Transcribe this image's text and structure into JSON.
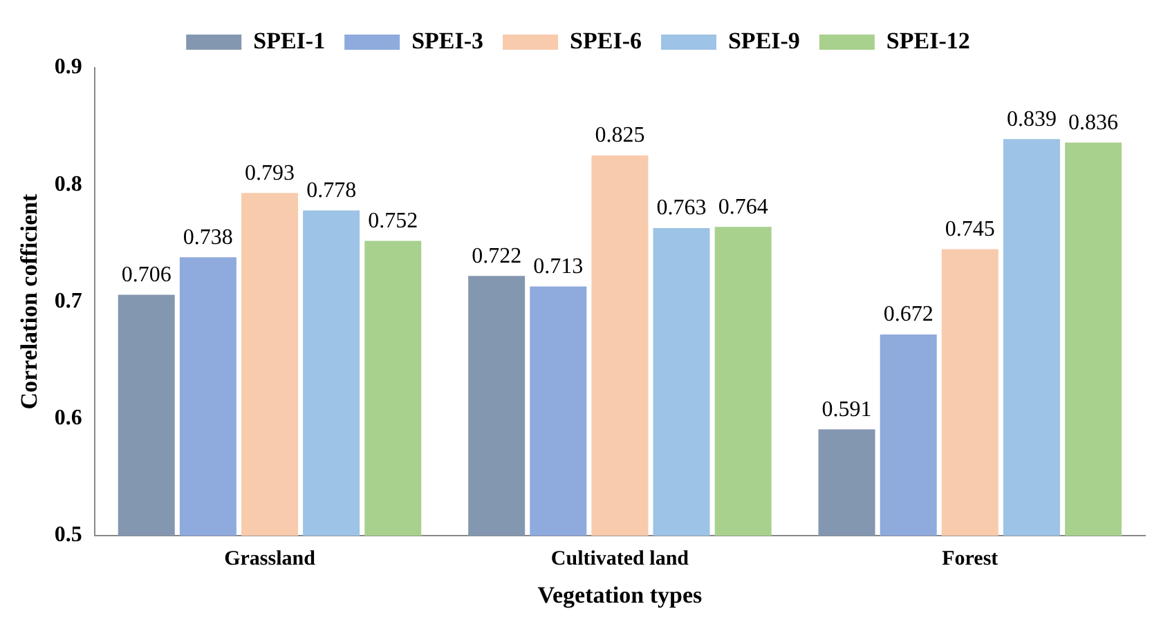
{
  "chart_data": {
    "type": "bar",
    "xlabel": "Vegetation types",
    "ylabel": "Correlation cofficient",
    "categories": [
      "Grassland",
      "Cultivated land",
      "Forest"
    ],
    "series": [
      {
        "name": "SPEI-1",
        "color": "#8497b0",
        "values": [
          0.706,
          0.722,
          0.591
        ]
      },
      {
        "name": "SPEI-3",
        "color": "#8faadc",
        "values": [
          0.738,
          0.713,
          0.672
        ]
      },
      {
        "name": "SPEI-6",
        "color": "#f8cbad",
        "values": [
          0.793,
          0.825,
          0.745
        ]
      },
      {
        "name": "SPEI-9",
        "color": "#9dc3e6",
        "values": [
          0.778,
          0.763,
          0.839
        ]
      },
      {
        "name": "SPEI-12",
        "color": "#a9d18e",
        "values": [
          0.752,
          0.764,
          0.836
        ]
      }
    ],
    "ylim": [
      0.5,
      0.9
    ],
    "yticks": [
      0.5,
      0.6,
      0.7,
      0.8,
      0.9
    ],
    "grid": false,
    "legend": "top",
    "data_labels": true
  }
}
